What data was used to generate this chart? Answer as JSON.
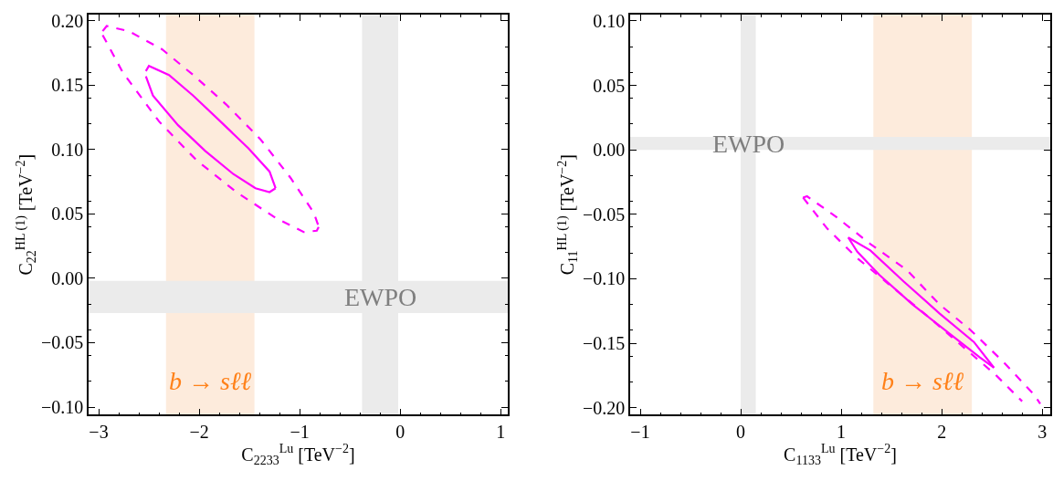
{
  "chart_data": [
    {
      "type": "line",
      "xlabel": "C$_{2233}$$^{Lu}$ [TeV$^{−2}$]",
      "ylabel": "C$_{22}$$^{HL (1)}$ [TeV$^{−2}$]",
      "xlim": [
        -3.1,
        1.07
      ],
      "ylim": [
        -0.106,
        0.205
      ],
      "xticks": [
        {
          "value": -3,
          "label": "−3"
        },
        {
          "value": -2,
          "label": "−2"
        },
        {
          "value": -1,
          "label": "−1"
        },
        0,
        1
      ],
      "yticks": [
        {
          "value": -0.1,
          "label": "−0.10"
        },
        {
          "value": -0.05,
          "label": "−0.05"
        },
        {
          "value": 0,
          "label": "0.00"
        },
        {
          "value": 0.05,
          "label": "0.05"
        },
        {
          "value": 0.1,
          "label": "0.10"
        },
        {
          "value": 0.15,
          "label": "0.15"
        },
        {
          "value": 0.2,
          "label": "0.20"
        }
      ],
      "marker": "none",
      "series": [
        {
          "color": "#ff00ff",
          "line_style": "solid",
          "x": [
            -2.53,
            -2.5,
            -2.3,
            -2.06,
            -1.79,
            -1.51,
            -1.3,
            -1.24
          ],
          "values": [
            0.161,
            0.165,
            0.158,
            0.142,
            0.122,
            0.101,
            0.083,
            0.07
          ]
        },
        {
          "color": "#ff00ff",
          "line_style": "solid",
          "x": [
            -2.53,
            -2.46,
            -2.21,
            -1.94,
            -1.66,
            -1.44,
            -1.3,
            -1.24
          ],
          "values": [
            0.157,
            0.142,
            0.119,
            0.099,
            0.081,
            0.07,
            0.067,
            0.07
          ]
        },
        {
          "color": "#ff00ff",
          "line_style": "dashed",
          "x": [
            -2.96,
            -2.92,
            -2.7,
            -2.37,
            -2.06,
            -1.73,
            -1.39,
            -1.09,
            -0.86,
            -0.81
          ],
          "values": [
            0.192,
            0.196,
            0.192,
            0.178,
            0.158,
            0.135,
            0.108,
            0.078,
            0.051,
            0.04
          ]
        },
        {
          "color": "#ff00ff",
          "line_style": "dashed",
          "x": [
            -2.96,
            -2.76,
            -2.4,
            -2.03,
            -1.63,
            -1.24,
            -0.96,
            -0.83,
            -0.81
          ],
          "values": [
            0.189,
            0.16,
            0.122,
            0.092,
            0.067,
            0.047,
            0.036,
            0.037,
            0.04
          ]
        }
      ],
      "bands": [
        {
          "axis": "x",
          "from": -2.33,
          "to": -1.45,
          "color": "#fdebdc",
          "label": "b → sℓℓ"
        },
        {
          "axis": "x",
          "from": -0.38,
          "to": -0.02,
          "color": "#ebebeb"
        },
        {
          "axis": "y",
          "from": -0.027,
          "to": -0.002,
          "color": "#ebebeb",
          "label": "EWPO"
        }
      ]
    },
    {
      "type": "line",
      "xlabel": "C$_{1133}$$^{Lu}$ [TeV$^{−2}$]",
      "ylabel": "C$_{11}$$^{HL (1)}$ [TeV$^{−2}$]",
      "xlim": [
        -1.1,
        3.08
      ],
      "ylim": [
        -0.2055,
        0.105
      ],
      "xticks": [
        {
          "value": -1,
          "label": "−1"
        },
        0,
        1,
        2,
        3
      ],
      "yticks": [
        {
          "value": -0.2,
          "label": "−0.20"
        },
        {
          "value": -0.15,
          "label": "−0.15"
        },
        {
          "value": -0.1,
          "label": "−0.10"
        },
        {
          "value": -0.05,
          "label": "−0.05"
        },
        {
          "value": 0,
          "label": "0.00"
        },
        {
          "value": 0.05,
          "label": "0.05"
        },
        {
          "value": 0.1,
          "label": "0.10"
        }
      ],
      "marker": "none",
      "series": [
        {
          "color": "#ff00ff",
          "line_style": "solid",
          "x": [
            1.07,
            1.29,
            1.62,
            1.98,
            2.32,
            2.51,
            2.52
          ],
          "values": [
            -0.068,
            -0.078,
            -0.102,
            -0.127,
            -0.149,
            -0.168,
            -0.169
          ]
        },
        {
          "color": "#ff00ff",
          "line_style": "solid",
          "x": [
            1.07,
            1.16,
            1.38,
            1.71,
            2.07,
            2.38,
            2.52
          ],
          "values": [
            -0.068,
            -0.079,
            -0.097,
            -0.12,
            -0.142,
            -0.161,
            -0.169
          ]
        },
        {
          "color": "#ff00ff",
          "line_style": "dashed",
          "x": [
            0.62,
            0.66,
            0.95,
            1.29,
            1.65,
            1.98,
            2.29,
            2.62,
            2.92,
            2.98
          ],
          "values": [
            -0.037,
            -0.036,
            -0.052,
            -0.073,
            -0.093,
            -0.12,
            -0.14,
            -0.165,
            -0.19,
            -0.197
          ]
        },
        {
          "color": "#ff00ff",
          "line_style": "dashed",
          "x": [
            0.62,
            0.86,
            1.16,
            1.47,
            1.89,
            2.26,
            2.53,
            2.8
          ],
          "values": [
            -0.037,
            -0.061,
            -0.084,
            -0.104,
            -0.131,
            -0.156,
            -0.174,
            -0.195
          ]
        }
      ],
      "bands": [
        {
          "axis": "x",
          "from": 0,
          "to": 0.15,
          "color": "#ebebeb"
        },
        {
          "axis": "x",
          "from": 1.32,
          "to": 2.3,
          "color": "#fdebdc",
          "label": "b → sℓℓ"
        },
        {
          "axis": "y",
          "from": 0,
          "to": 0.01,
          "color": "#ebebeb",
          "label": "EWPO"
        }
      ]
    }
  ]
}
